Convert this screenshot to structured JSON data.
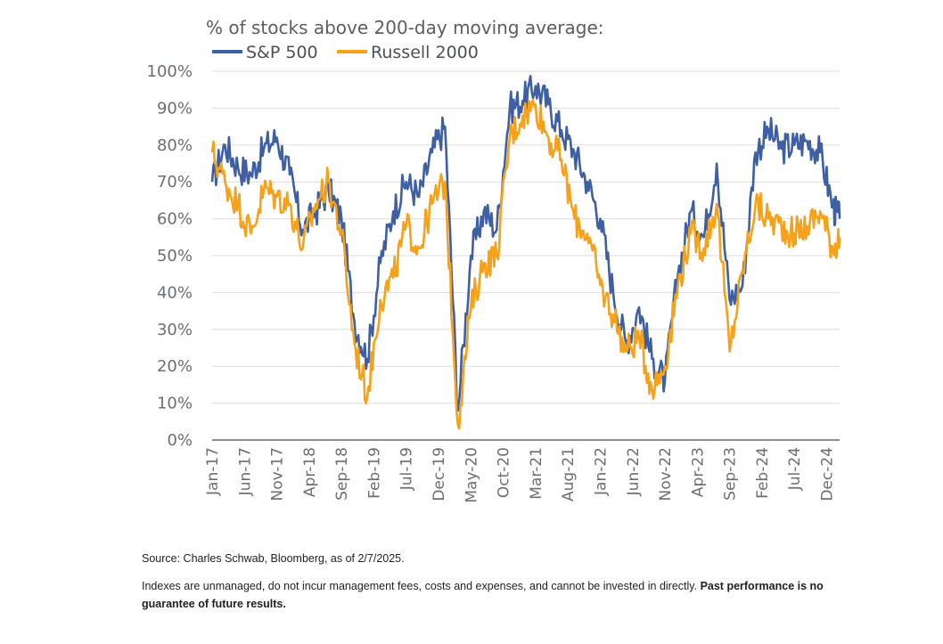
{
  "chart_data": {
    "type": "line",
    "title": "% of stocks above 200-day moving average:",
    "ylim": [
      0,
      100
    ],
    "y_ticks": [
      "0%",
      "10%",
      "20%",
      "30%",
      "40%",
      "50%",
      "60%",
      "70%",
      "80%",
      "90%",
      "100%"
    ],
    "x_ticks": [
      "Jan-17",
      "Jun-17",
      "Nov-17",
      "Apr-18",
      "Sep-18",
      "Feb-19",
      "Jul-19",
      "Dec-19",
      "May-20",
      "Oct-20",
      "Mar-21",
      "Aug-21",
      "Jan-22",
      "Jun-22",
      "Nov-22",
      "Apr-23",
      "Sep-23",
      "Feb-24",
      "Jul-24",
      "Dec-24"
    ],
    "x_range": [
      "2017-01",
      "2025-02"
    ],
    "grid": true,
    "legend_placement": "top-left",
    "x": [
      "2017-01",
      "2017-03",
      "2017-05",
      "2017-07",
      "2017-09",
      "2017-11",
      "2018-01",
      "2018-03",
      "2018-05",
      "2018-07",
      "2018-09",
      "2018-11",
      "2019-01",
      "2019-03",
      "2019-05",
      "2019-07",
      "2019-09",
      "2019-11",
      "2020-01",
      "2020-03",
      "2020-05",
      "2020-07",
      "2020-09",
      "2020-11",
      "2021-01",
      "2021-03",
      "2021-05",
      "2021-07",
      "2021-09",
      "2021-11",
      "2022-01",
      "2022-03",
      "2022-05",
      "2022-07",
      "2022-09",
      "2022-11",
      "2023-01",
      "2023-03",
      "2023-05",
      "2023-07",
      "2023-09",
      "2023-11",
      "2024-01",
      "2024-03",
      "2024-05",
      "2024-07",
      "2024-09",
      "2024-11",
      "2025-01",
      "2025-02"
    ],
    "series": [
      {
        "name": "S&P 500",
        "color": "#3f5fa3",
        "values": [
          70,
          80,
          74,
          72,
          79,
          82,
          72,
          57,
          62,
          68,
          60,
          32,
          22,
          48,
          62,
          70,
          66,
          78,
          85,
          8,
          50,
          62,
          57,
          90,
          92,
          96,
          91,
          84,
          78,
          70,
          60,
          40,
          26,
          36,
          22,
          16,
          45,
          62,
          55,
          75,
          38,
          42,
          78,
          84,
          79,
          80,
          81,
          78,
          63,
          60
        ]
      },
      {
        "name": "Russell 2000",
        "color": "#f5a21a",
        "values": [
          78,
          70,
          64,
          56,
          68,
          66,
          64,
          52,
          64,
          70,
          56,
          26,
          12,
          38,
          44,
          58,
          52,
          64,
          70,
          4,
          36,
          48,
          50,
          82,
          88,
          91,
          82,
          76,
          60,
          56,
          42,
          34,
          24,
          28,
          14,
          20,
          42,
          56,
          52,
          64,
          24,
          46,
          64,
          60,
          58,
          56,
          58,
          62,
          52,
          55
        ]
      }
    ]
  },
  "footnotes": {
    "source": "Source: Charles Schwab, Bloomberg, as of 2/7/2025.",
    "disclaimer": "Indexes are unmanaged, do not incur management fees, costs and expenses, and cannot be invested in directly.",
    "disclaimer_bold": "Past performance is no guarantee of future results."
  }
}
